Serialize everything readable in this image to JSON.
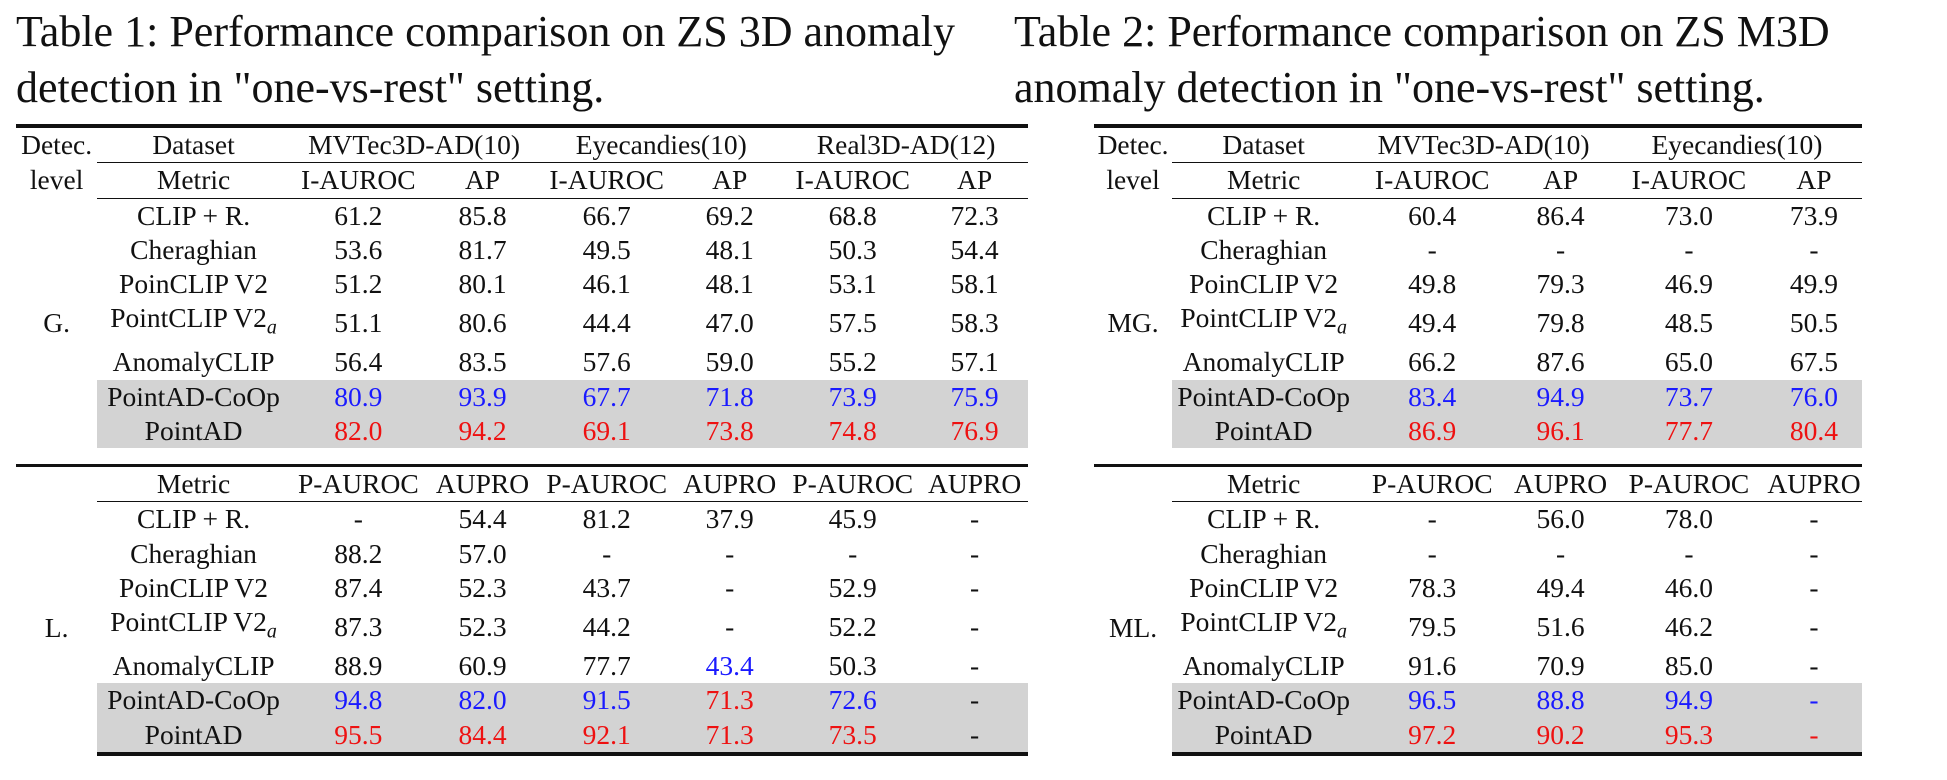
{
  "colors": {
    "second_best": "#1a1aff",
    "best": "#ee1111",
    "highlight_row": "#d3d3d3"
  },
  "table1": {
    "caption": "Table 1:  Performance comparison on ZS 3D anomaly detection in \"one-vs-rest\" setting.",
    "header": {
      "level_line1": "Detec.",
      "level_line2": "level",
      "dataset_label": "Dataset",
      "metric_label": "Metric",
      "datasets": [
        "MVTec3D-AD(10)",
        "Eyecandies(10)",
        "Real3D-AD(12)"
      ],
      "global_metrics": [
        "I-AUROC",
        "AP",
        "I-AUROC",
        "AP",
        "I-AUROC",
        "AP"
      ],
      "local_metrics": [
        "P-AUROC",
        "AUPRO",
        "P-AUROC",
        "AUPRO",
        "P-AUROC",
        "AUPRO"
      ]
    },
    "global": {
      "level": "G.",
      "rows": [
        {
          "method": "CLIP + R.",
          "values": [
            "61.2",
            "85.8",
            "66.7",
            "69.2",
            "68.8",
            "72.3"
          ]
        },
        {
          "method": "Cheraghian",
          "values": [
            "53.6",
            "81.7",
            "49.5",
            "48.1",
            "50.3",
            "54.4"
          ]
        },
        {
          "method": "PoinCLIP V2",
          "values": [
            "51.2",
            "80.1",
            "46.1",
            "48.1",
            "53.1",
            "58.1"
          ]
        },
        {
          "method": "PointCLIP V2",
          "method_sub": "a",
          "values": [
            "51.1",
            "80.6",
            "44.4",
            "47.0",
            "57.5",
            "58.3"
          ]
        },
        {
          "method": "AnomalyCLIP",
          "values": [
            "56.4",
            "83.5",
            "57.6",
            "59.0",
            "55.2",
            "57.1"
          ]
        },
        {
          "method": "PointAD-CoOp",
          "values": [
            "80.9",
            "93.9",
            "67.7",
            "71.8",
            "73.9",
            "75.9"
          ]
        },
        {
          "method": "PointAD",
          "values": [
            "82.0",
            "94.2",
            "69.1",
            "73.8",
            "74.8",
            "76.9"
          ]
        }
      ]
    },
    "local": {
      "level": "L.",
      "rows": [
        {
          "method": "CLIP + R.",
          "values": [
            "-",
            "54.4",
            "81.2",
            "37.9",
            "45.9",
            "-"
          ]
        },
        {
          "method": "Cheraghian",
          "values": [
            "88.2",
            "57.0",
            "-",
            "-",
            "-",
            "-"
          ]
        },
        {
          "method": "PoinCLIP V2",
          "values": [
            "87.4",
            "52.3",
            "43.7",
            "-",
            "52.9",
            "-"
          ]
        },
        {
          "method": "PointCLIP V2",
          "method_sub": "a",
          "values": [
            "87.3",
            "52.3",
            "44.2",
            "-",
            "52.2",
            "-"
          ]
        },
        {
          "method": "AnomalyCLIP",
          "values": [
            "88.9",
            "60.9",
            "77.7",
            "43.4",
            "50.3",
            "-"
          ]
        },
        {
          "method": "PointAD-CoOp",
          "values": [
            "94.8",
            "82.0",
            "91.5",
            "71.3",
            "72.6",
            "-"
          ]
        },
        {
          "method": "PointAD",
          "values": [
            "95.5",
            "84.4",
            "92.1",
            "71.3",
            "73.5",
            "-"
          ]
        }
      ]
    }
  },
  "table2": {
    "caption": "Table 2: Performance comparison on ZS M3D anomaly detection in \"one-vs-rest\" setting.",
    "header": {
      "level_line1": "Detec.",
      "level_line2": "level",
      "dataset_label": "Dataset",
      "metric_label": "Metric",
      "datasets": [
        "MVTec3D-AD(10)",
        "Eyecandies(10)"
      ],
      "global_metrics": [
        "I-AUROC",
        "AP",
        "I-AUROC",
        "AP"
      ],
      "local_metrics": [
        "P-AUROC",
        "AUPRO",
        "P-AUROC",
        "AUPRO"
      ]
    },
    "global": {
      "level": "MG.",
      "rows": [
        {
          "method": "CLIP + R.",
          "values": [
            "60.4",
            "86.4",
            "73.0",
            "73.9"
          ]
        },
        {
          "method": "Cheraghian",
          "values": [
            "-",
            "-",
            "-",
            "-"
          ]
        },
        {
          "method": "PoinCLIP V2",
          "values": [
            "49.8",
            "79.3",
            "46.9",
            "49.9"
          ]
        },
        {
          "method": "PointCLIP V2",
          "method_sub": "a",
          "values": [
            "49.4",
            "79.8",
            "48.5",
            "50.5"
          ]
        },
        {
          "method": "AnomalyCLIP",
          "values": [
            "66.2",
            "87.6",
            "65.0",
            "67.5"
          ]
        },
        {
          "method": "PointAD-CoOp",
          "values": [
            "83.4",
            "94.9",
            "73.7",
            "76.0"
          ]
        },
        {
          "method": "PointAD",
          "values": [
            "86.9",
            "96.1",
            "77.7",
            "80.4"
          ]
        }
      ]
    },
    "local": {
      "level": "ML.",
      "rows": [
        {
          "method": "CLIP + R.",
          "values": [
            "-",
            "56.0",
            "78.0",
            "-"
          ]
        },
        {
          "method": "Cheraghian",
          "values": [
            "-",
            "-",
            "-",
            "-"
          ]
        },
        {
          "method": "PoinCLIP V2",
          "values": [
            "78.3",
            "49.4",
            "46.0",
            "-"
          ]
        },
        {
          "method": "PointCLIP V2",
          "method_sub": "a",
          "values": [
            "79.5",
            "51.6",
            "46.2",
            "-"
          ]
        },
        {
          "method": "AnomalyCLIP",
          "values": [
            "91.6",
            "70.9",
            "85.0",
            "-"
          ]
        },
        {
          "method": "PointAD-CoOp",
          "values": [
            "96.5",
            "88.8",
            "94.9",
            "-"
          ]
        },
        {
          "method": "PointAD",
          "values": [
            "97.2",
            "90.2",
            "95.3",
            "-"
          ]
        }
      ]
    }
  }
}
